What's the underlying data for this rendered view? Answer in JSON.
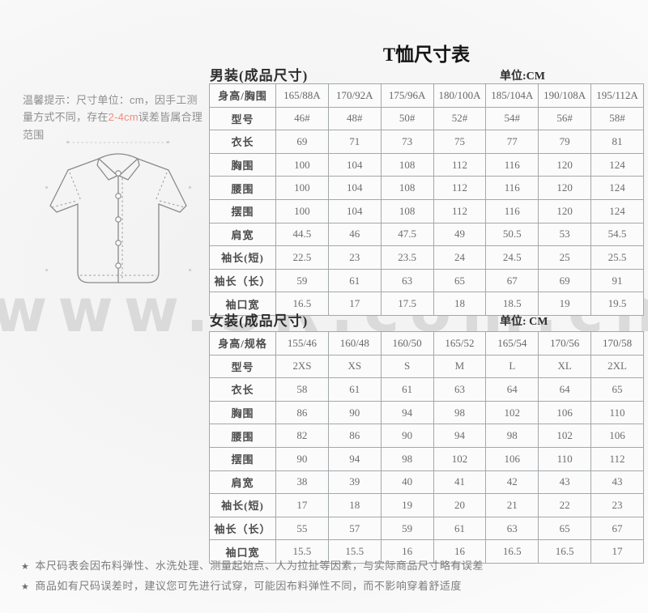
{
  "page": {
    "title": "T恤尺寸表",
    "watermark": "www.SR.com.cn"
  },
  "tip": {
    "before": "温馨提示：尺寸单位：cm，因手工测量方式不同，存在",
    "highlight": "2-4cm",
    "after": "误差皆属合理范围",
    "highlight_color": "#ef8d80"
  },
  "shirt_illustration": "short-sleeve-button-shirt-line-drawing",
  "men_table": {
    "section_title": "男装(成品尺寸)",
    "unit_label": "单位:CM",
    "header": [
      "身高/胸围",
      "165/88A",
      "170/92A",
      "175/96A",
      "180/100A",
      "185/104A",
      "190/108A",
      "195/112A"
    ],
    "rows": [
      [
        "型号",
        "46#",
        "48#",
        "50#",
        "52#",
        "54#",
        "56#",
        "58#"
      ],
      [
        "衣长",
        "69",
        "71",
        "73",
        "75",
        "77",
        "79",
        "81"
      ],
      [
        "胸围",
        "100",
        "104",
        "108",
        "112",
        "116",
        "120",
        "124"
      ],
      [
        "腰围",
        "100",
        "104",
        "108",
        "112",
        "116",
        "120",
        "124"
      ],
      [
        "摆围",
        "100",
        "104",
        "108",
        "112",
        "116",
        "120",
        "124"
      ],
      [
        "肩宽",
        "44.5",
        "46",
        "47.5",
        "49",
        "50.5",
        "53",
        "54.5"
      ],
      [
        "袖长(短)",
        "22.5",
        "23",
        "23.5",
        "24",
        "24.5",
        "25",
        "25.5"
      ],
      [
        "袖长（长）",
        "59",
        "61",
        "63",
        "65",
        "67",
        "69",
        "91"
      ],
      [
        "袖口宽",
        "16.5",
        "17",
        "17.5",
        "18",
        "18.5",
        "19",
        "19.5"
      ]
    ]
  },
  "women_table": {
    "section_title": "女装(成品尺寸)",
    "unit_label": "单位: CM",
    "header": [
      "身高/规格",
      "155/46",
      "160/48",
      "160/50",
      "165/52",
      "165/54",
      "170/56",
      "170/58"
    ],
    "rows": [
      [
        "型号",
        "2XS",
        "XS",
        "S",
        "M",
        "L",
        "XL",
        "2XL"
      ],
      [
        "衣长",
        "58",
        "61",
        "61",
        "63",
        "64",
        "64",
        "65"
      ],
      [
        "胸围",
        "86",
        "90",
        "94",
        "98",
        "102",
        "106",
        "110"
      ],
      [
        "腰围",
        "82",
        "86",
        "90",
        "94",
        "98",
        "102",
        "106"
      ],
      [
        "摆围",
        "90",
        "94",
        "98",
        "102",
        "106",
        "110",
        "112"
      ],
      [
        "肩宽",
        "38",
        "39",
        "40",
        "41",
        "42",
        "43",
        "43"
      ],
      [
        "袖长(短)",
        "17",
        "18",
        "19",
        "20",
        "21",
        "22",
        "23"
      ],
      [
        "袖长（长）",
        "55",
        "57",
        "59",
        "61",
        "63",
        "65",
        "67"
      ],
      [
        "袖口宽",
        "15.5",
        "15.5",
        "16",
        "16",
        "16.5",
        "16.5",
        "17"
      ]
    ]
  },
  "footnotes": [
    {
      "marker": "★",
      "text": "本尺码表会因布料弹性、水洗处理、测量起始点、人为拉扯等因素，与实际商品尺寸略有误差"
    },
    {
      "marker": "★",
      "text": "商品如有尺码误差时，建议您可先进行试穿，可能因布料弹性不同，而不影响穿着舒适度"
    }
  ]
}
